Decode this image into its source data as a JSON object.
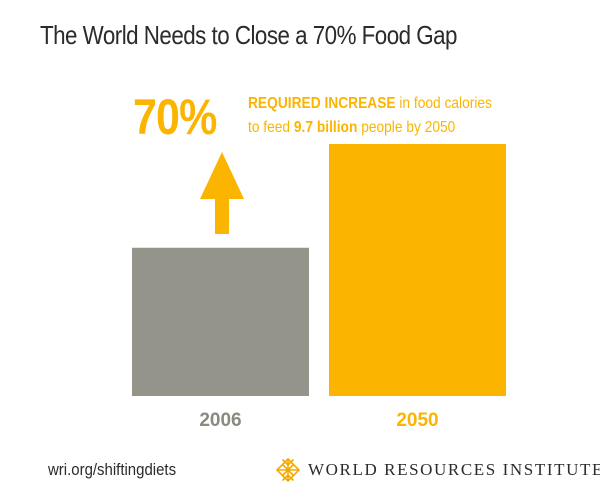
{
  "title": "The World Needs to Close a 70% Food Gap",
  "colors": {
    "bar_2006": "#94948a",
    "bar_2050": "#fbb500",
    "accent": "#fbb500",
    "label_2006": "#8a8a80",
    "text": "#2b2b2b"
  },
  "callout": {
    "big_number": "70%",
    "line1_strong": "REQUIRED INCREASE",
    "line1_rest": " in food calories",
    "line2_pre": "to feed ",
    "line2_strong": "9.7 billion",
    "line2_post": " people by 2050",
    "arrow_icon": "up-arrow-icon"
  },
  "chart_data": {
    "type": "bar",
    "title": "The World Needs to Close a 70% Food Gap",
    "categories": [
      "2006",
      "2050"
    ],
    "values": [
      100,
      170
    ],
    "unit": "relative food calories (2006 = 100)",
    "annotation": "70% REQUIRED INCREASE in food calories to feed 9.7 billion people by 2050",
    "xlabel": "",
    "ylabel": "",
    "ylim": [
      0,
      170
    ],
    "grid": false,
    "legend": "none"
  },
  "footer": {
    "url": "wri.org/shiftingdiets",
    "org_name": "WORLD RESOURCES INSTITUTE",
    "logo_icon": "wri-lattice-logo-icon"
  }
}
